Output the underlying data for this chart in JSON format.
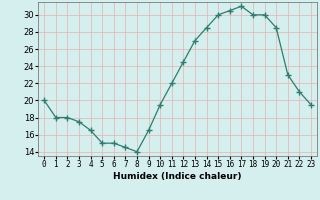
{
  "x": [
    0,
    1,
    2,
    3,
    4,
    5,
    6,
    7,
    8,
    9,
    10,
    11,
    12,
    13,
    14,
    15,
    16,
    17,
    18,
    19,
    20,
    21,
    22,
    23
  ],
  "y": [
    20,
    18,
    18,
    17.5,
    16.5,
    15,
    15,
    14.5,
    14,
    16.5,
    19.5,
    22,
    24.5,
    27,
    28.5,
    30,
    30.5,
    31,
    30,
    30,
    28.5,
    23,
    21,
    19.5
  ],
  "xlabel": "Humidex (Indice chaleur)",
  "line_color": "#2e7d6e",
  "marker": "+",
  "marker_size": 4,
  "bg_color": "#d4efed",
  "grid_color": "#e8b0b0",
  "xlim": [
    -0.5,
    23.5
  ],
  "ylim": [
    13.5,
    31.5
  ],
  "yticks": [
    14,
    16,
    18,
    20,
    22,
    24,
    26,
    28,
    30
  ],
  "xtick_labels": [
    "0",
    "1",
    "2",
    "3",
    "4",
    "5",
    "6",
    "7",
    "8",
    "9",
    "10",
    "11",
    "12",
    "13",
    "14",
    "15",
    "16",
    "17",
    "18",
    "19",
    "20",
    "21",
    "22",
    "23"
  ]
}
